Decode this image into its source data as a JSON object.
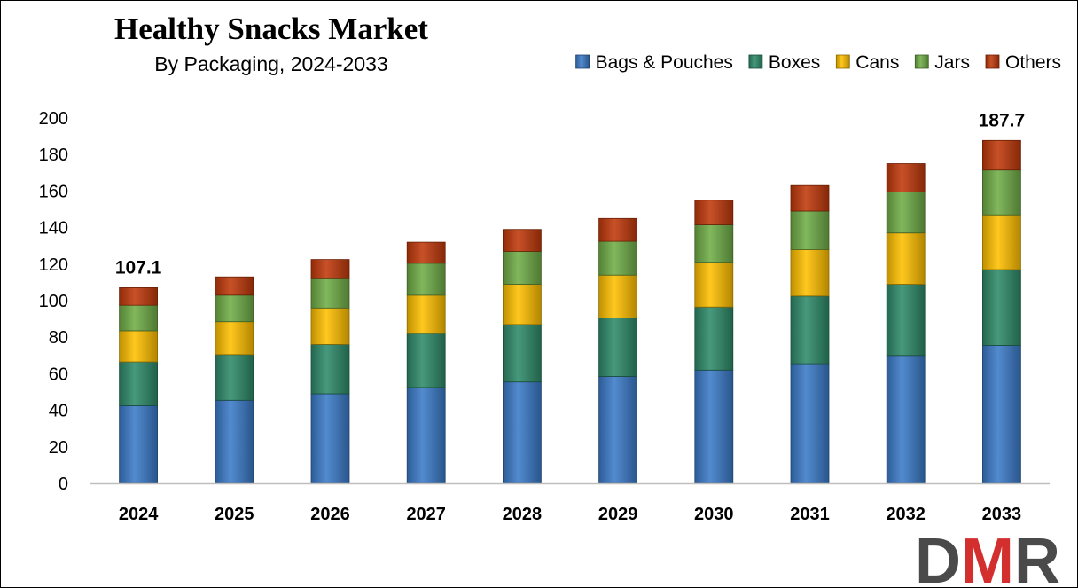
{
  "chart_data": {
    "type": "bar",
    "stacked": true,
    "title": "Healthy Snacks Market",
    "subtitle": "By Packaging, 2024-2033",
    "categories": [
      "2024",
      "2025",
      "2026",
      "2027",
      "2028",
      "2029",
      "2030",
      "2031",
      "2032",
      "2033"
    ],
    "series": [
      {
        "name": "Bags & Pouches",
        "color": "#3B7BC8",
        "values": [
          42.5,
          45.5,
          49.0,
          52.5,
          55.5,
          58.5,
          62.0,
          65.5,
          70.0,
          75.5
        ]
      },
      {
        "name": "Boxes",
        "color": "#2E8B6A",
        "values": [
          24.0,
          25.0,
          27.0,
          29.5,
          31.5,
          32.0,
          34.5,
          37.0,
          39.0,
          41.5
        ]
      },
      {
        "name": "Cans",
        "color": "#FFC000",
        "values": [
          17.0,
          18.0,
          20.0,
          21.0,
          22.0,
          23.5,
          24.5,
          25.5,
          28.0,
          30.0
        ]
      },
      {
        "name": "Jars",
        "color": "#70AD47",
        "values": [
          14.0,
          14.5,
          16.0,
          17.5,
          18.0,
          18.5,
          20.5,
          21.0,
          22.5,
          24.5
        ]
      },
      {
        "name": "Others",
        "color": "#C0390B",
        "values": [
          9.6,
          10.0,
          10.5,
          11.5,
          12.0,
          12.5,
          13.5,
          14.0,
          15.5,
          16.2
        ]
      }
    ],
    "data_labels": [
      {
        "category": "2024",
        "text": "107.1"
      },
      {
        "category": "2033",
        "text": "187.7"
      }
    ],
    "ylim": [
      0,
      200
    ],
    "yticks": [
      0,
      20,
      40,
      60,
      80,
      100,
      120,
      140,
      160,
      180,
      200
    ],
    "xlabel": "",
    "ylabel": "",
    "grid": false,
    "legend_position": "top-right"
  },
  "logo": {
    "text": "DMR",
    "color_d": "#4A4A4A",
    "color_m": "#D32F2F",
    "color_r": "#4A4A4A"
  }
}
